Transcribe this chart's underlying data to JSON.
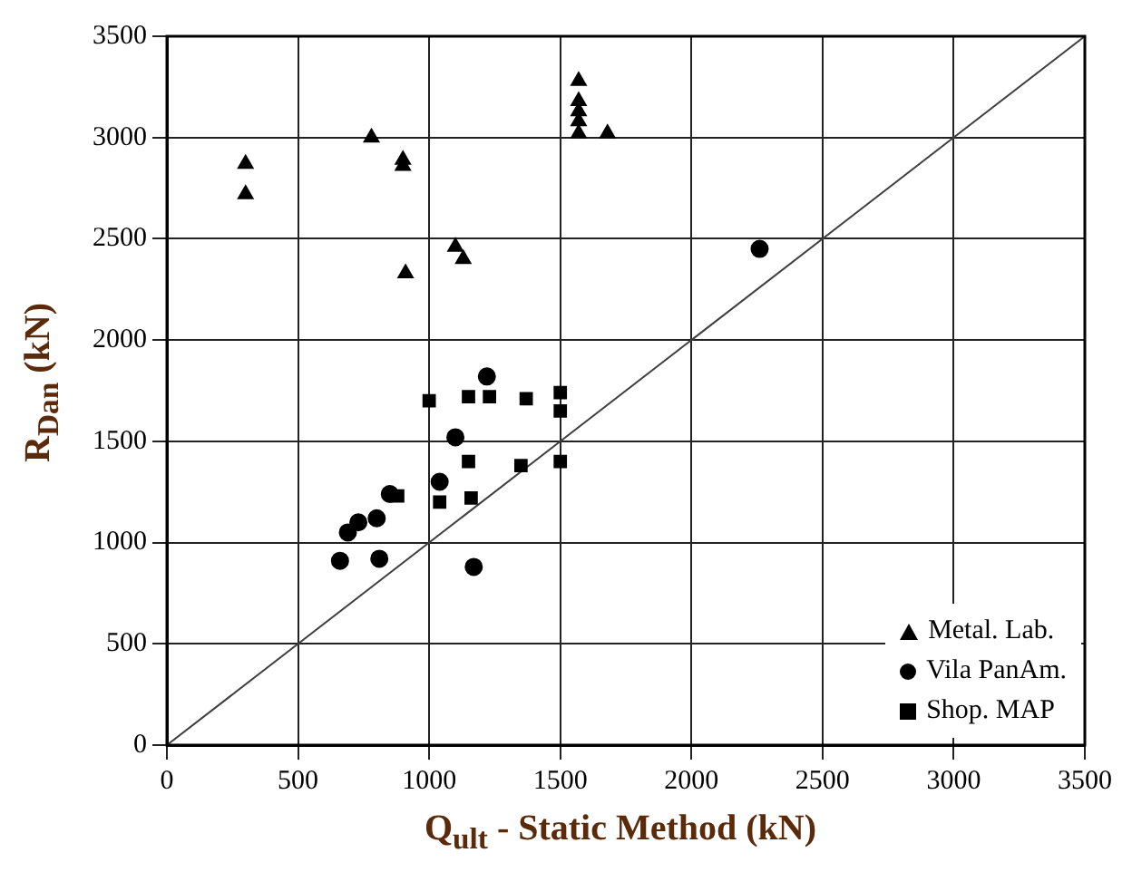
{
  "chart_data": {
    "type": "scatter",
    "xlabel": "Q$_{ult}$ - Static Method (kN)",
    "ylabel": "R$_{Dan}$ (kN)",
    "xlim": [
      0,
      3500
    ],
    "ylim": [
      0,
      3500
    ],
    "xticks": [
      0,
      500,
      1000,
      1500,
      2000,
      2500,
      3000,
      3500
    ],
    "yticks": [
      0,
      500,
      1000,
      1500,
      2000,
      2500,
      3000,
      3500
    ],
    "grid": true,
    "legend": "bottom right",
    "series": [
      {
        "name": "Metal. Lab.",
        "color": "#000000",
        "marker": "triangle",
        "x": [
          300,
          300,
          780,
          900,
          900,
          910,
          1100,
          1130,
          1570,
          1570,
          1570,
          1570,
          1570,
          1680
        ],
        "values": [
          2870,
          2720,
          3000,
          2890,
          2860,
          2330,
          2460,
          2400,
          3280,
          3180,
          3130,
          3080,
          3020,
          3020
        ]
      },
      {
        "name": "Vila PanAm.",
        "color": "#000000",
        "marker": "circle",
        "x": [
          2260,
          1220,
          1100,
          1040,
          850,
          800,
          730,
          690,
          660,
          810,
          1170
        ],
        "values": [
          2450,
          1820,
          1520,
          1300,
          1240,
          1120,
          1100,
          1050,
          910,
          920,
          880
        ]
      },
      {
        "name": "Shop. MAP",
        "color": "#000000",
        "marker": "square",
        "x": [
          1000,
          1150,
          1230,
          1370,
          1500,
          1500,
          1150,
          1350,
          1500,
          880,
          1040,
          1160
        ],
        "values": [
          1700,
          1720,
          1720,
          1710,
          1740,
          1650,
          1400,
          1380,
          1400,
          1230,
          1200,
          1220
        ]
      },
      {
        "type": "line",
        "color": "#404040",
        "marker": "none",
        "x": [
          0,
          3500
        ],
        "values": [
          0,
          3500
        ]
      }
    ]
  }
}
